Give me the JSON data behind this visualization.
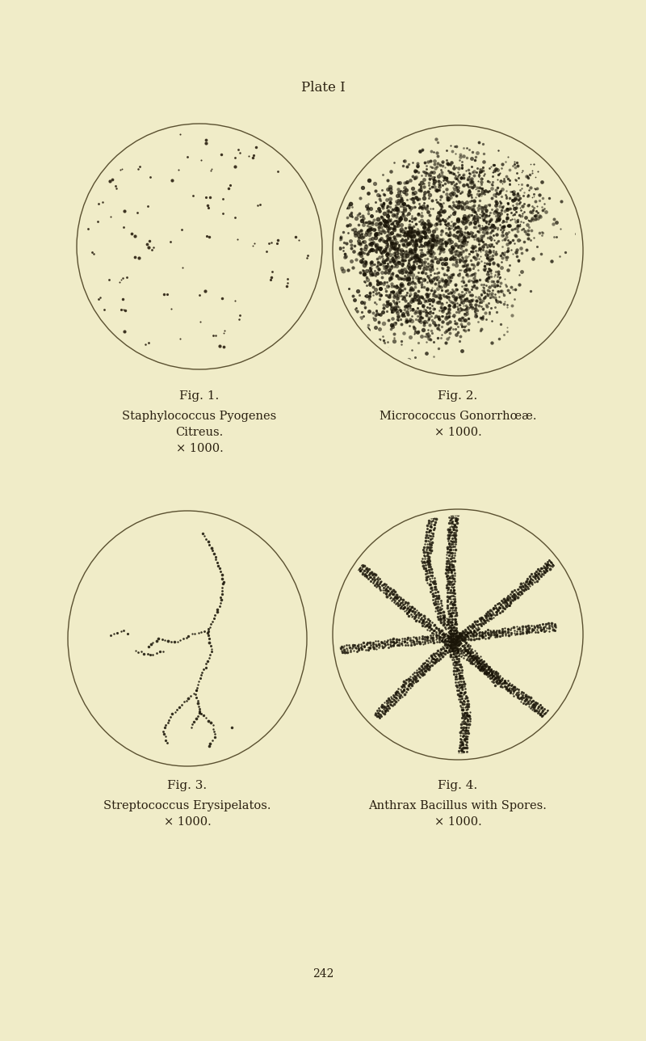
{
  "bg_color": "#f0ecc8",
  "title": "Plate I",
  "title_fontsize": 12,
  "circle_color": "#5a5030",
  "circle_lw": 1.0,
  "dot_color": "#2a2010",
  "fig1_label": "Fig. 1.",
  "fig2_label": "Fig. 2.",
  "fig3_label": "Fig. 3.",
  "fig4_label": "Fig. 4.",
  "fig1_line1": "Staphylococcus Pyogenes",
  "fig1_line2": "Citreus.",
  "fig1_line3": "× 1000.",
  "fig2_line1": "Micrococcus Gonorrhœæ.",
  "fig2_line2": "× 1000.",
  "fig3_line1": "Streptococcus Erysipelatos.",
  "fig3_line2": "× 1000.",
  "fig4_line1": "Anthrax Bacillus with Spores.",
  "fig4_line2": "× 1000.",
  "page_num": "242",
  "caption_fontsize": 10.5,
  "label_fontsize": 11,
  "fig_w": 8.0,
  "fig_h": 12.88
}
